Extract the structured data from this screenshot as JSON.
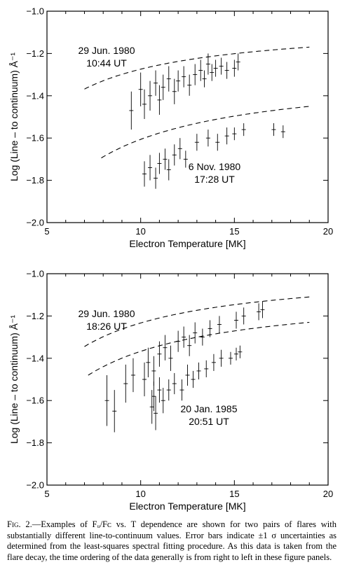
{
  "chart_data": [
    {
      "type": "scatter",
      "xlabel": "Electron Temperature [MK]",
      "ylabel": "Log (Line – to continuum) Å⁻¹",
      "xlim": [
        5,
        20
      ],
      "ylim": [
        -2.0,
        -1.0
      ],
      "xticks": [
        "5",
        "10",
        "15",
        "20"
      ],
      "yticks": [
        "−1.0",
        "−1.2",
        "−1.4",
        "−1.6",
        "−1.8",
        "−2.0"
      ],
      "series": [
        {
          "label_line1": "29 Jun. 1980",
          "label_line2": "10:44 UT",
          "fit": {
            "a": -1.17,
            "b": -2.2,
            "xmin": 7.0,
            "xmax": 19.0
          },
          "points": [
            {
              "x": 9.5,
              "y": -1.47,
              "err": 0.09
            },
            {
              "x": 10.0,
              "y": -1.37,
              "err": 0.08
            },
            {
              "x": 10.2,
              "y": -1.44,
              "err": 0.07
            },
            {
              "x": 10.5,
              "y": -1.4,
              "err": 0.07
            },
            {
              "x": 10.8,
              "y": -1.34,
              "err": 0.06
            },
            {
              "x": 11.0,
              "y": -1.42,
              "err": 0.07
            },
            {
              "x": 11.2,
              "y": -1.36,
              "err": 0.06
            },
            {
              "x": 11.5,
              "y": -1.32,
              "err": 0.06
            },
            {
              "x": 11.8,
              "y": -1.38,
              "err": 0.06
            },
            {
              "x": 12.0,
              "y": -1.33,
              "err": 0.05
            },
            {
              "x": 12.3,
              "y": -1.31,
              "err": 0.05
            },
            {
              "x": 12.6,
              "y": -1.35,
              "err": 0.05
            },
            {
              "x": 12.9,
              "y": -1.3,
              "err": 0.05
            },
            {
              "x": 13.2,
              "y": -1.28,
              "err": 0.05
            },
            {
              "x": 13.4,
              "y": -1.32,
              "err": 0.04
            },
            {
              "x": 13.6,
              "y": -1.25,
              "err": 0.05
            },
            {
              "x": 13.8,
              "y": -1.29,
              "err": 0.04
            },
            {
              "x": 14.0,
              "y": -1.27,
              "err": 0.04
            },
            {
              "x": 14.3,
              "y": -1.26,
              "err": 0.04
            },
            {
              "x": 14.6,
              "y": -1.28,
              "err": 0.04
            },
            {
              "x": 15.0,
              "y": -1.27,
              "err": 0.04
            },
            {
              "x": 15.2,
              "y": -1.24,
              "err": 0.04
            }
          ]
        },
        {
          "label_line1": "6 Nov. 1980",
          "label_line2": "17:28 UT",
          "fit": {
            "a": -1.45,
            "b": -3.3,
            "xmin": 7.9,
            "xmax": 19.0
          },
          "points": [
            {
              "x": 10.2,
              "y": -1.77,
              "err": 0.06
            },
            {
              "x": 10.5,
              "y": -1.74,
              "err": 0.06
            },
            {
              "x": 10.8,
              "y": -1.79,
              "err": 0.05
            },
            {
              "x": 11.0,
              "y": -1.72,
              "err": 0.05
            },
            {
              "x": 11.3,
              "y": -1.7,
              "err": 0.05
            },
            {
              "x": 11.5,
              "y": -1.75,
              "err": 0.05
            },
            {
              "x": 11.8,
              "y": -1.68,
              "err": 0.05
            },
            {
              "x": 12.1,
              "y": -1.65,
              "err": 0.05
            },
            {
              "x": 12.4,
              "y": -1.7,
              "err": 0.04
            },
            {
              "x": 13.0,
              "y": -1.62,
              "err": 0.04
            },
            {
              "x": 13.6,
              "y": -1.6,
              "err": 0.04
            },
            {
              "x": 14.1,
              "y": -1.62,
              "err": 0.04
            },
            {
              "x": 14.6,
              "y": -1.59,
              "err": 0.04
            },
            {
              "x": 15.0,
              "y": -1.58,
              "err": 0.03
            },
            {
              "x": 15.5,
              "y": -1.56,
              "err": 0.03
            },
            {
              "x": 17.1,
              "y": -1.56,
              "err": 0.03
            },
            {
              "x": 17.6,
              "y": -1.57,
              "err": 0.03
            }
          ]
        }
      ]
    },
    {
      "type": "scatter",
      "xlabel": "Electron Temperature [MK]",
      "ylabel": "Log (Line – to continuum) Å⁻¹",
      "xlim": [
        5,
        20
      ],
      "ylim": [
        -2.0,
        -1.0
      ],
      "xticks": [
        "5",
        "10",
        "15",
        "20"
      ],
      "yticks": [
        "−1.0",
        "−1.2",
        "−1.4",
        "−1.6",
        "−1.8",
        "−2.0"
      ],
      "series": [
        {
          "label_line1": "29 Jun. 1980",
          "label_line2": "18:26 UT",
          "fit": {
            "a": -1.11,
            "b": -2.6,
            "xmin": 7.0,
            "xmax": 19.0
          },
          "points": [
            {
              "x": 8.2,
              "y": -1.6,
              "err": 0.12
            },
            {
              "x": 8.6,
              "y": -1.65,
              "err": 0.1
            },
            {
              "x": 9.2,
              "y": -1.52,
              "err": 0.09
            },
            {
              "x": 9.6,
              "y": -1.48,
              "err": 0.08
            },
            {
              "x": 10.2,
              "y": -1.5,
              "err": 0.08
            },
            {
              "x": 10.4,
              "y": -1.42,
              "err": 0.07
            },
            {
              "x": 10.7,
              "y": -1.46,
              "err": 0.07
            },
            {
              "x": 11.0,
              "y": -1.38,
              "err": 0.06
            },
            {
              "x": 11.3,
              "y": -1.35,
              "err": 0.06
            },
            {
              "x": 11.6,
              "y": -1.4,
              "err": 0.06
            },
            {
              "x": 12.0,
              "y": -1.32,
              "err": 0.05
            },
            {
              "x": 12.3,
              "y": -1.3,
              "err": 0.05
            },
            {
              "x": 12.6,
              "y": -1.34,
              "err": 0.05
            },
            {
              "x": 12.9,
              "y": -1.28,
              "err": 0.05
            },
            {
              "x": 13.3,
              "y": -1.3,
              "err": 0.04
            },
            {
              "x": 13.7,
              "y": -1.26,
              "err": 0.04
            },
            {
              "x": 14.2,
              "y": -1.24,
              "err": 0.04
            },
            {
              "x": 15.1,
              "y": -1.22,
              "err": 0.04
            },
            {
              "x": 15.5,
              "y": -1.2,
              "err": 0.04
            },
            {
              "x": 16.3,
              "y": -1.18,
              "err": 0.04
            },
            {
              "x": 16.5,
              "y": -1.17,
              "err": 0.04
            }
          ]
        },
        {
          "label_line1": "20 Jan. 1985",
          "label_line2": "20:51 UT",
          "fit": {
            "a": -1.23,
            "b": -2.9,
            "xmin": 7.2,
            "xmax": 19.0
          },
          "points": [
            {
              "x": 10.6,
              "y": -1.63,
              "err": 0.08
            },
            {
              "x": 10.7,
              "y": -1.58,
              "err": 0.07
            },
            {
              "x": 10.8,
              "y": -1.66,
              "err": 0.08
            },
            {
              "x": 11.0,
              "y": -1.55,
              "err": 0.06
            },
            {
              "x": 11.2,
              "y": -1.6,
              "err": 0.06
            },
            {
              "x": 11.5,
              "y": -1.55,
              "err": 0.05
            },
            {
              "x": 11.8,
              "y": -1.52,
              "err": 0.05
            },
            {
              "x": 12.2,
              "y": -1.55,
              "err": 0.05
            },
            {
              "x": 12.5,
              "y": -1.48,
              "err": 0.05
            },
            {
              "x": 12.8,
              "y": -1.5,
              "err": 0.04
            },
            {
              "x": 13.1,
              "y": -1.46,
              "err": 0.04
            },
            {
              "x": 13.5,
              "y": -1.45,
              "err": 0.04
            },
            {
              "x": 13.9,
              "y": -1.42,
              "err": 0.04
            },
            {
              "x": 14.3,
              "y": -1.4,
              "err": 0.04
            },
            {
              "x": 14.8,
              "y": -1.4,
              "err": 0.03
            },
            {
              "x": 15.1,
              "y": -1.38,
              "err": 0.03
            },
            {
              "x": 15.3,
              "y": -1.37,
              "err": 0.03
            }
          ]
        }
      ]
    }
  ],
  "caption": {
    "fig_label": "Fig. 2.",
    "text": "—Examples of Fᵤ/Fᴄ vs. T dependence are shown for two pairs of flares with substantially different line-to-continuum values. Error bars indicate ±1 σ uncertainties as determined from the least-squares spectral fitting procedure. As this data is taken from the flare decay, the time ordering of the data generally is from right to left in these figure panels."
  }
}
